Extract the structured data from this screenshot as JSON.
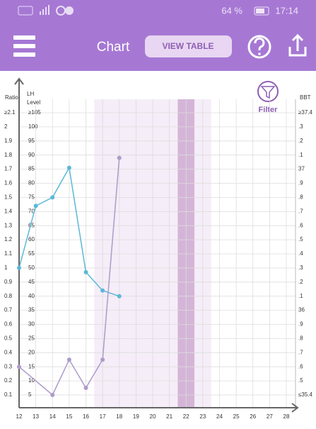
{
  "status_bar": {
    "battery": "64 %",
    "time": "17:14"
  },
  "app_bar": {
    "title": "Chart",
    "button": "VIEW TABLE"
  },
  "filter": {
    "label": "Filter"
  },
  "chart_data": {
    "type": "line",
    "xlim": [
      12,
      28
    ],
    "xticks": [
      12,
      13,
      14,
      15,
      16,
      17,
      18,
      19,
      20,
      21,
      22,
      23,
      24,
      25,
      26,
      27,
      28
    ],
    "ylabel": "Ratio",
    "ylim": [
      0.1,
      2.1
    ],
    "yticks": [
      {
        "value": 2.1,
        "label": "≥2.1"
      },
      2,
      1.9,
      1.8,
      1.7,
      1.6,
      1.5,
      1.4,
      1.3,
      1.2,
      1.1,
      1,
      0.9,
      0.8,
      0.7,
      0.6,
      0.5,
      0.4,
      0.3,
      0.2,
      0.1
    ],
    "y2label": [
      "LH",
      "Level"
    ],
    "y2lim": [
      5,
      105
    ],
    "y2ticks": [
      {
        "value": 105,
        "label": "≥105"
      },
      100,
      95,
      90,
      85,
      80,
      75,
      70,
      65,
      60,
      55,
      50,
      45,
      40,
      35,
      30,
      25,
      20,
      15,
      10,
      5
    ],
    "y3label": "BBT",
    "y3lim": [
      35.4,
      37.4
    ],
    "y3ticks": [
      {
        "value": 37.4,
        "label": "≥37.4"
      },
      {
        "value": 37.3,
        "label": ".3"
      },
      {
        "value": 37.2,
        "label": ".2"
      },
      {
        "value": 37.1,
        "label": ".1"
      },
      37,
      {
        "value": 36.9,
        "label": ".9"
      },
      {
        "value": 36.8,
        "label": ".8"
      },
      {
        "value": 36.7,
        "label": ".7"
      },
      {
        "value": 36.6,
        "label": ".6"
      },
      {
        "value": 36.5,
        "label": ".5"
      },
      {
        "value": 36.4,
        "label": ".4"
      },
      {
        "value": 36.3,
        "label": ".3"
      },
      {
        "value": 36.2,
        "label": ".2"
      },
      {
        "value": 36.1,
        "label": ".1"
      },
      36,
      {
        "value": 35.9,
        "label": ".9"
      },
      {
        "value": 35.8,
        "label": ".8"
      },
      {
        "value": 35.7,
        "label": ".7"
      },
      {
        "value": 35.6,
        "label": ".6"
      },
      {
        "value": 35.5,
        "label": ".5"
      },
      {
        "value": 35.4,
        "label": "≤35.4"
      }
    ],
    "shaded_range": [
      16.5,
      23.5
    ],
    "shaded_color": "#f5edf7",
    "dark_range": [
      21.5,
      22.5
    ],
    "dark_color": "#d4b5d8",
    "grid": true,
    "series": [
      {
        "color": "#5bb8d8",
        "axis": "y2",
        "x": [
          12,
          13,
          14,
          15,
          16,
          17,
          18
        ],
        "values": [
          50,
          72,
          75,
          85.5,
          48.5,
          42,
          40
        ]
      },
      {
        "color": "#ad9bcb",
        "axis": "y",
        "x": [
          12,
          14,
          15,
          16,
          17,
          18
        ],
        "values": [
          0.3,
          0.1,
          0.35,
          0.15,
          0.35,
          1.78
        ]
      }
    ]
  }
}
